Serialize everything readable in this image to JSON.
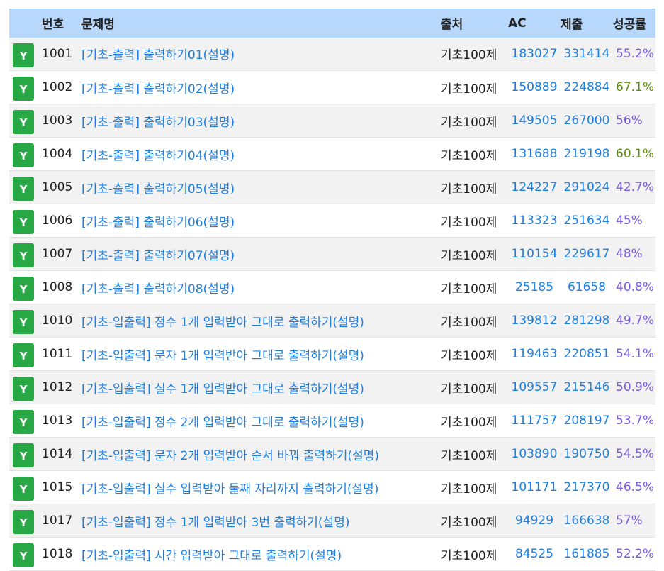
{
  "header": {
    "number": "번호",
    "title": "문제명",
    "source": "출처",
    "ac": "AC",
    "submissions": "제출",
    "rate": "성공률"
  },
  "colors": {
    "header_bg": "#b8d8fb",
    "badge": "#28a745",
    "link": "#1e7fe0",
    "rate_purple": "#7b5be0",
    "rate_green": "#5f8f10"
  },
  "rows": [
    {
      "badge": "Y",
      "number": "1001",
      "title": "[기초-출력] 출력하기01(설명)",
      "source": "기초100제",
      "ac": "183027",
      "submissions": "331414",
      "rate": "55.2%",
      "rate_color": "purple"
    },
    {
      "badge": "Y",
      "number": "1002",
      "title": "[기초-출력] 출력하기02(설명)",
      "source": "기초100제",
      "ac": "150889",
      "submissions": "224884",
      "rate": "67.1%",
      "rate_color": "green"
    },
    {
      "badge": "Y",
      "number": "1003",
      "title": "[기초-출력] 출력하기03(설명)",
      "source": "기초100제",
      "ac": "149505",
      "submissions": "267000",
      "rate": "56%",
      "rate_color": "purple"
    },
    {
      "badge": "Y",
      "number": "1004",
      "title": "[기초-출력] 출력하기04(설명)",
      "source": "기초100제",
      "ac": "131688",
      "submissions": "219198",
      "rate": "60.1%",
      "rate_color": "green"
    },
    {
      "badge": "Y",
      "number": "1005",
      "title": "[기초-출력] 출력하기05(설명)",
      "source": "기초100제",
      "ac": "124227",
      "submissions": "291024",
      "rate": "42.7%",
      "rate_color": "purple"
    },
    {
      "badge": "Y",
      "number": "1006",
      "title": "[기초-출력] 출력하기06(설명)",
      "source": "기초100제",
      "ac": "113323",
      "submissions": "251634",
      "rate": "45%",
      "rate_color": "purple"
    },
    {
      "badge": "Y",
      "number": "1007",
      "title": "[기초-출력] 출력하기07(설명)",
      "source": "기초100제",
      "ac": "110154",
      "submissions": "229617",
      "rate": "48%",
      "rate_color": "purple"
    },
    {
      "badge": "Y",
      "number": "1008",
      "title": "[기초-출력] 출력하기08(설명)",
      "source": "기초100제",
      "ac": "25185",
      "submissions": "61658",
      "rate": "40.8%",
      "rate_color": "purple"
    },
    {
      "badge": "Y",
      "number": "1010",
      "title": "[기초-입출력] 정수 1개 입력받아 그대로 출력하기(설명)",
      "source": "기초100제",
      "ac": "139812",
      "submissions": "281298",
      "rate": "49.7%",
      "rate_color": "purple"
    },
    {
      "badge": "Y",
      "number": "1011",
      "title": "[기초-입출력] 문자 1개 입력받아 그대로 출력하기(설명)",
      "source": "기초100제",
      "ac": "119463",
      "submissions": "220851",
      "rate": "54.1%",
      "rate_color": "purple"
    },
    {
      "badge": "Y",
      "number": "1012",
      "title": "[기초-입출력] 실수 1개 입력받아 그대로 출력하기(설명)",
      "source": "기초100제",
      "ac": "109557",
      "submissions": "215146",
      "rate": "50.9%",
      "rate_color": "purple"
    },
    {
      "badge": "Y",
      "number": "1013",
      "title": "[기초-입출력] 정수 2개 입력받아 그대로 출력하기(설명)",
      "source": "기초100제",
      "ac": "111757",
      "submissions": "208197",
      "rate": "53.7%",
      "rate_color": "purple"
    },
    {
      "badge": "Y",
      "number": "1014",
      "title": "[기초-입출력] 문자 2개 입력받아 순서 바꿔 출력하기(설명)",
      "source": "기초100제",
      "ac": "103890",
      "submissions": "190750",
      "rate": "54.5%",
      "rate_color": "purple"
    },
    {
      "badge": "Y",
      "number": "1015",
      "title": "[기초-입출력] 실수 입력받아 둘째 자리까지 출력하기(설명)",
      "source": "기초100제",
      "ac": "101171",
      "submissions": "217370",
      "rate": "46.5%",
      "rate_color": "purple"
    },
    {
      "badge": "Y",
      "number": "1017",
      "title": "[기초-입출력] 정수 1개 입력받아 3번 출력하기(설명)",
      "source": "기초100제",
      "ac": "94929",
      "submissions": "166638",
      "rate": "57%",
      "rate_color": "purple"
    },
    {
      "badge": "Y",
      "number": "1018",
      "title": "[기초-입출력] 시간 입력받아 그대로 출력하기(설명)",
      "source": "기초100제",
      "ac": "84525",
      "submissions": "161885",
      "rate": "52.2%",
      "rate_color": "purple"
    }
  ]
}
